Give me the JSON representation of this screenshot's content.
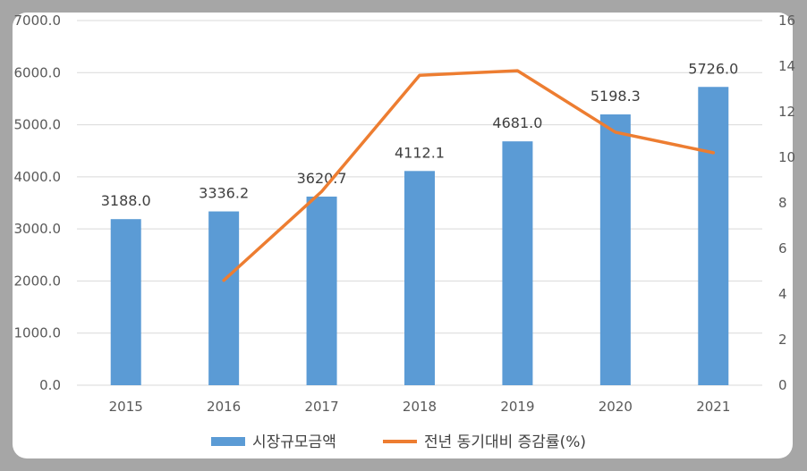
{
  "chart_data": {
    "type": "bar",
    "title": "",
    "xlabel": "",
    "ylabel": "",
    "categories": [
      "2015",
      "2016",
      "2017",
      "2018",
      "2019",
      "2020",
      "2021"
    ],
    "series": [
      {
        "name": "시장규모금액",
        "type": "bar",
        "axis": "left",
        "values": [
          3188.0,
          3336.2,
          3620.7,
          4112.1,
          4681.0,
          5198.3,
          5726.0
        ],
        "labels": [
          "3188.0",
          "3336.2",
          "3620.7",
          "4112.1",
          "4681.0",
          "5198.3",
          "5726.0"
        ],
        "color": "#5b9bd5"
      },
      {
        "name": "전년 동기대비 증감률(%)",
        "type": "line",
        "axis": "right",
        "values": [
          null,
          4.6,
          8.5,
          13.6,
          13.8,
          11.1,
          10.2
        ],
        "color": "#ed7d31"
      }
    ],
    "ylim_left": [
      0,
      7000
    ],
    "ytick_labels_left": [
      "0.0",
      "1000.0",
      "2000.0",
      "3000.0",
      "4000.0",
      "5000.0",
      "6000.0",
      "7000.0"
    ],
    "ylim_right": [
      0,
      16
    ],
    "ytick_labels_right": [
      "0",
      "2",
      "4",
      "6",
      "8",
      "10",
      "12",
      "14",
      "16"
    ],
    "grid": true,
    "legend_position": "bottom"
  }
}
